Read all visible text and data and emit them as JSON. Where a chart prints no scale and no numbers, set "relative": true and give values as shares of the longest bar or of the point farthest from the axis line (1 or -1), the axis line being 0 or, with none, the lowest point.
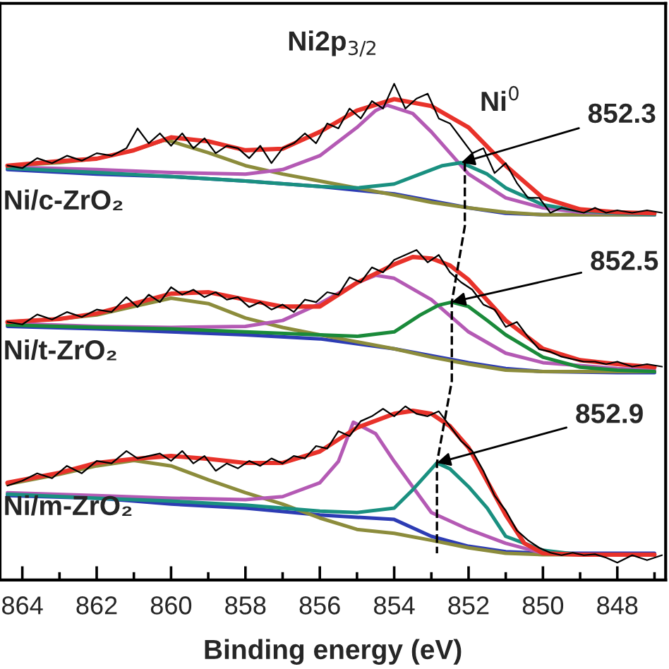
{
  "chart_data": {
    "type": "line",
    "title": "Ni2p$_{3/2}$",
    "xlabel": "Binding energy (eV)",
    "relative": true,
    "tick_labels": "x",
    "grid": false,
    "legend": false,
    "xlim": [
      864.6,
      846.7
    ],
    "xticks": [
      864,
      {
        "value": 863,
        "label": null
      },
      862,
      {
        "value": 861,
        "label": null
      },
      860,
      {
        "value": 859,
        "label": null
      },
      858,
      {
        "value": 857,
        "label": null
      },
      856,
      {
        "value": 855,
        "label": null
      },
      854,
      {
        "value": 853,
        "label": null
      },
      852,
      {
        "value": 851,
        "label": null
      },
      850,
      {
        "value": 849,
        "label": null
      },
      848,
      {
        "value": 847,
        "label": null
      }
    ],
    "annotations": [
      "Ni/c-ZrO₂",
      "Ni/t-ZrO₂",
      "Ni/m-ZrO₂",
      {
        "text": "Ni$^{0}$",
        "x": 852.2,
        "y": 0.841
      },
      {
        "text": "852.3",
        "x": 852.2,
        "y": 0.841
      },
      {
        "text": "852.5",
        "x": 852.45,
        "y": 0.56
      },
      {
        "text": "852.9",
        "x": 852.85,
        "y": 0.236
      }
    ],
    "series": [
      {
        "color": "#000000",
        "x": [
          864.4,
          864.0,
          863.6,
          863.2,
          862.8,
          862.4,
          862.0,
          861.6,
          861.2,
          860.9,
          860.6,
          860.3,
          860.0,
          859.7,
          859.4,
          859.1,
          858.8,
          858.5,
          858.2,
          857.9,
          857.6,
          857.3,
          857.0,
          856.7,
          856.4,
          856.1,
          855.8,
          855.5,
          855.2,
          854.9,
          854.6,
          854.3,
          854.0,
          853.7,
          853.4,
          853.1,
          852.8,
          852.5,
          852.2,
          851.9,
          851.6,
          851.3,
          851.0,
          850.7,
          850.4,
          850.1,
          849.8,
          849.5,
          849.2,
          848.9,
          848.6,
          848.3,
          848.0,
          847.6,
          847.2,
          846.8
        ],
        "values": [
          0.835,
          0.83,
          0.85,
          0.84,
          0.855,
          0.845,
          0.86,
          0.855,
          0.87,
          0.91,
          0.88,
          0.9,
          0.875,
          0.9,
          0.87,
          0.89,
          0.86,
          0.875,
          0.87,
          0.85,
          0.875,
          0.84,
          0.87,
          0.88,
          0.9,
          0.88,
          0.92,
          0.91,
          0.95,
          0.93,
          0.965,
          0.95,
          1.0,
          0.95,
          0.97,
          0.98,
          0.93,
          0.92,
          0.89,
          0.86,
          0.87,
          0.82,
          0.84,
          0.8,
          0.77,
          0.77,
          0.74,
          0.75,
          0.745,
          0.74,
          0.75,
          0.74,
          0.745,
          0.74,
          0.745,
          0.74
        ]
      },
      {
        "color": "#2d3cb4",
        "x": [
          864.4,
          862,
          860,
          858,
          856,
          854,
          852,
          851,
          850,
          848,
          847
        ],
        "values": [
          0.827,
          0.818,
          0.813,
          0.804,
          0.793,
          0.778,
          0.75,
          0.739,
          0.736,
          0.736,
          0.736
        ]
      },
      {
        "color": "#8c8c3c",
        "x": [
          864.4,
          863,
          862,
          861,
          860.2,
          860,
          859,
          858,
          857,
          856,
          855,
          854,
          853,
          852,
          851,
          850,
          848,
          847
        ],
        "values": [
          0.835,
          0.841,
          0.849,
          0.866,
          0.886,
          0.884,
          0.861,
          0.835,
          0.818,
          0.804,
          0.79,
          0.776,
          0.761,
          0.75,
          0.741,
          0.736,
          0.736,
          0.736
        ]
      },
      {
        "color": "#b45ab4",
        "x": [
          864.4,
          862,
          860,
          858,
          857,
          856,
          855,
          854.5,
          854.2,
          853.5,
          853,
          852,
          851,
          850,
          849,
          848,
          847
        ],
        "values": [
          0.832,
          0.827,
          0.821,
          0.818,
          0.827,
          0.855,
          0.912,
          0.946,
          0.957,
          0.94,
          0.903,
          0.818,
          0.77,
          0.75,
          0.741,
          0.739,
          0.736
        ]
      },
      {
        "color": "#1a9080",
        "x": [
          864.4,
          862,
          860,
          858,
          856,
          855,
          854,
          853.3,
          852.7,
          852.2,
          851.5,
          851,
          850,
          849,
          848,
          847
        ],
        "values": [
          0.83,
          0.821,
          0.813,
          0.804,
          0.793,
          0.79,
          0.798,
          0.818,
          0.835,
          0.841,
          0.818,
          0.79,
          0.756,
          0.744,
          0.739,
          0.736
        ]
      },
      {
        "color": "#e8322a",
        "x": [
          864.4,
          863,
          862,
          861,
          860,
          859,
          858,
          857,
          856,
          855,
          854,
          853,
          852,
          851,
          850,
          849,
          848,
          847
        ],
        "values": [
          0.835,
          0.844,
          0.849,
          0.866,
          0.892,
          0.884,
          0.866,
          0.869,
          0.903,
          0.946,
          0.969,
          0.955,
          0.912,
          0.835,
          0.77,
          0.747,
          0.741,
          0.739
        ]
      },
      {
        "color": "#000000",
        "x": [
          864.4,
          864.0,
          863.6,
          863.2,
          862.8,
          862.4,
          862.0,
          861.6,
          861.2,
          860.9,
          860.6,
          860.3,
          860.0,
          859.7,
          859.4,
          859.1,
          858.8,
          858.5,
          858.2,
          857.9,
          857.6,
          857.3,
          857.0,
          856.7,
          856.4,
          856.1,
          855.8,
          855.5,
          855.2,
          854.9,
          854.6,
          854.3,
          854.0,
          853.7,
          853.4,
          853.1,
          852.8,
          852.5,
          852.2,
          851.9,
          851.6,
          851.3,
          851.0,
          850.7,
          850.4,
          850.1,
          849.8,
          849.5,
          849.2,
          848.9,
          848.6,
          848.3,
          848.0,
          847.6,
          847.2,
          846.8
        ],
        "values": [
          0.52,
          0.515,
          0.535,
          0.525,
          0.54,
          0.53,
          0.545,
          0.54,
          0.57,
          0.55,
          0.575,
          0.56,
          0.59,
          0.575,
          0.585,
          0.57,
          0.58,
          0.565,
          0.57,
          0.55,
          0.56,
          0.545,
          0.555,
          0.54,
          0.565,
          0.56,
          0.58,
          0.575,
          0.61,
          0.6,
          0.63,
          0.62,
          0.645,
          0.655,
          0.665,
          0.64,
          0.655,
          0.62,
          0.6,
          0.585,
          0.555,
          0.545,
          0.51,
          0.52,
          0.49,
          0.465,
          0.46,
          0.45,
          0.445,
          0.44,
          0.44,
          0.435,
          0.44,
          0.43,
          0.435,
          0.43
        ]
      },
      {
        "color": "#2d3cb4",
        "x": [
          864.4,
          862,
          860,
          858,
          856,
          854,
          852,
          851,
          850,
          848,
          847
        ],
        "values": [
          0.511,
          0.506,
          0.5,
          0.494,
          0.486,
          0.466,
          0.438,
          0.426,
          0.42,
          0.418,
          0.418
        ]
      },
      {
        "color": "#8c8c3c",
        "x": [
          864.4,
          863,
          862,
          861,
          860,
          859,
          858,
          857,
          856,
          855,
          854,
          853,
          852,
          851,
          850,
          848,
          847
        ],
        "values": [
          0.52,
          0.526,
          0.534,
          0.551,
          0.568,
          0.557,
          0.528,
          0.509,
          0.494,
          0.48,
          0.466,
          0.449,
          0.435,
          0.423,
          0.42,
          0.42,
          0.42
        ]
      },
      {
        "color": "#b45ab4",
        "x": [
          864.4,
          862,
          860,
          858,
          857,
          856,
          855,
          854.5,
          854,
          853,
          852,
          851,
          850,
          849,
          848,
          847
        ],
        "values": [
          0.517,
          0.511,
          0.509,
          0.511,
          0.523,
          0.557,
          0.599,
          0.614,
          0.608,
          0.565,
          0.5,
          0.457,
          0.438,
          0.432,
          0.426,
          0.423
        ]
      },
      {
        "color": "#1a8a3a",
        "x": [
          864.4,
          862,
          860,
          858,
          856,
          855,
          854,
          853.3,
          852.8,
          852.45,
          852,
          851.5,
          851,
          850,
          849,
          848,
          847
        ],
        "values": [
          0.514,
          0.509,
          0.506,
          0.5,
          0.494,
          0.491,
          0.5,
          0.534,
          0.554,
          0.56,
          0.551,
          0.523,
          0.494,
          0.449,
          0.429,
          0.423,
          0.42
        ]
      },
      {
        "color": "#e8322a",
        "x": [
          864.4,
          863,
          862,
          861,
          860,
          859,
          858,
          857,
          856,
          855,
          854,
          853.5,
          853,
          852.5,
          852,
          851,
          850,
          849,
          848,
          847
        ],
        "values": [
          0.52,
          0.526,
          0.537,
          0.557,
          0.577,
          0.58,
          0.565,
          0.551,
          0.551,
          0.599,
          0.636,
          0.651,
          0.648,
          0.634,
          0.605,
          0.523,
          0.466,
          0.443,
          0.435,
          0.429
        ]
      },
      {
        "color": "#000000",
        "x": [
          864.4,
          864.0,
          863.6,
          863.2,
          862.8,
          862.4,
          862.0,
          861.6,
          861.2,
          860.9,
          860.6,
          860.3,
          860.0,
          859.7,
          859.4,
          859.1,
          858.8,
          858.5,
          858.2,
          857.9,
          857.6,
          857.3,
          857.0,
          856.7,
          856.4,
          856.1,
          855.8,
          855.5,
          855.2,
          854.9,
          854.6,
          854.3,
          854.0,
          853.7,
          853.4,
          853.1,
          852.8,
          852.5,
          852.2,
          851.9,
          851.6,
          851.3,
          851.0,
          850.7,
          850.4,
          850.1,
          849.8,
          849.5,
          849.2,
          848.9,
          848.6,
          848.3,
          848.0,
          847.6,
          847.2,
          846.8
        ],
        "values": [
          0.19,
          0.2,
          0.215,
          0.205,
          0.23,
          0.215,
          0.24,
          0.235,
          0.26,
          0.245,
          0.25,
          0.255,
          0.24,
          0.26,
          0.235,
          0.25,
          0.22,
          0.235,
          0.225,
          0.24,
          0.23,
          0.245,
          0.235,
          0.25,
          0.245,
          0.27,
          0.265,
          0.3,
          0.29,
          0.32,
          0.33,
          0.345,
          0.33,
          0.35,
          0.335,
          0.33,
          0.34,
          0.31,
          0.28,
          0.26,
          0.22,
          0.17,
          0.14,
          0.1,
          0.08,
          0.065,
          0.055,
          0.05,
          0.055,
          0.05,
          0.052,
          0.045,
          0.035,
          0.05,
          0.04,
          0.05
        ]
      },
      {
        "color": "#2d3cb4",
        "x": [
          864.4,
          862,
          860,
          858,
          856,
          854,
          853,
          852,
          851,
          850,
          848,
          847
        ],
        "values": [
          0.17,
          0.165,
          0.153,
          0.145,
          0.131,
          0.122,
          0.088,
          0.068,
          0.057,
          0.054,
          0.054,
          0.054
        ]
      },
      {
        "color": "#8c8c3c",
        "x": [
          864.4,
          863,
          862,
          861,
          860,
          859,
          858,
          857,
          856,
          855,
          854,
          853,
          852,
          851,
          850,
          848,
          847
        ],
        "values": [
          0.193,
          0.213,
          0.23,
          0.241,
          0.23,
          0.202,
          0.176,
          0.153,
          0.125,
          0.102,
          0.094,
          0.08,
          0.065,
          0.054,
          0.051,
          0.051,
          0.051
        ]
      },
      {
        "color": "#b45ab4",
        "x": [
          864.4,
          862,
          860,
          858,
          857,
          856,
          855.5,
          855.1,
          854.5,
          854,
          853,
          852,
          851,
          850,
          849,
          848,
          847
        ],
        "values": [
          0.176,
          0.17,
          0.165,
          0.162,
          0.168,
          0.196,
          0.239,
          0.318,
          0.295,
          0.239,
          0.136,
          0.102,
          0.074,
          0.054,
          0.051,
          0.051,
          0.051
        ]
      },
      {
        "color": "#1a9080",
        "x": [
          864.4,
          862,
          860,
          858,
          856,
          855,
          854,
          853.5,
          852.85,
          852.5,
          852,
          851.5,
          851,
          850,
          849,
          848,
          847
        ],
        "values": [
          0.173,
          0.165,
          0.159,
          0.151,
          0.139,
          0.136,
          0.145,
          0.182,
          0.236,
          0.224,
          0.188,
          0.145,
          0.088,
          0.06,
          0.051,
          0.051,
          0.051
        ]
      },
      {
        "color": "#e8322a",
        "x": [
          864.4,
          863,
          862,
          861,
          860,
          859,
          858,
          857,
          856,
          855,
          854,
          853.5,
          853,
          852.5,
          852,
          851,
          850.5,
          850,
          849,
          848,
          847
        ],
        "values": [
          0.196,
          0.216,
          0.236,
          0.244,
          0.25,
          0.244,
          0.236,
          0.236,
          0.259,
          0.307,
          0.335,
          0.341,
          0.335,
          0.31,
          0.267,
          0.131,
          0.074,
          0.054,
          0.051,
          0.051,
          0.051
        ]
      },
      {
        "color": "#000000",
        "line_style": "dashed",
        "x": [
          852.1,
          852.1,
          852.45,
          852.45,
          852.85,
          852.85
        ],
        "values": [
          0.841,
          0.713,
          0.56,
          0.401,
          0.236,
          0.054
        ]
      }
    ]
  }
}
